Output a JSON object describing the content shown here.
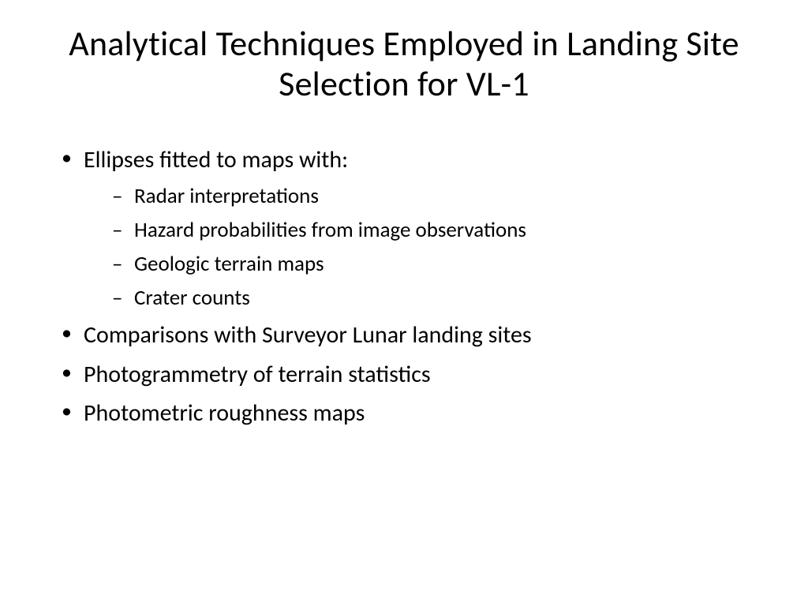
{
  "title": "Analytical Techniques Employed in Landing Site Selection for VL-1",
  "bullets": {
    "b1": "Ellipses fitted to maps with:",
    "b1_1": "Radar interpretations",
    "b1_2": "Hazard probabilities from image observations",
    "b1_3": "Geologic terrain maps",
    "b1_4": "Crater counts",
    "b2": "Comparisons with Surveyor Lunar landing sites",
    "b3": "Photogrammetry of terrain statistics",
    "b4": "Photometric roughness maps"
  }
}
